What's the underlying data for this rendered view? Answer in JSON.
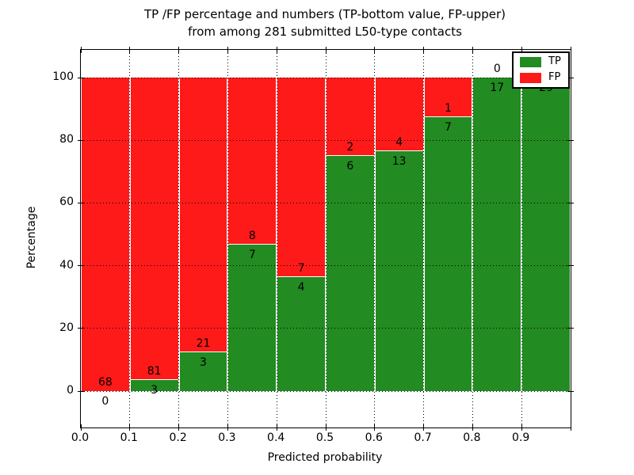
{
  "figure": {
    "title_line1": "TP /FP percentage and numbers (TP-bottom value, FP-upper)",
    "title_line2": "from among 281 submitted L50-type contacts",
    "xlabel": "Predicted probability",
    "ylabel": "Percentage"
  },
  "chart_data": {
    "type": "bar",
    "subtype": "stacked-100-percent",
    "title": "TP /FP percentage and numbers (TP-bottom value, FP-upper) from among 281 submitted L50-type contacts",
    "xlabel": "Predicted probability",
    "ylabel": "Percentage",
    "total_contacts": 281,
    "bin_width": 0.1,
    "bin_starts": [
      0.0,
      0.1,
      0.2,
      0.3,
      0.4,
      0.5,
      0.6,
      0.7,
      0.8,
      0.9
    ],
    "x_tick_labels": [
      "0.0",
      "0.1",
      "0.2",
      "0.3",
      "0.4",
      "0.5",
      "0.6",
      "0.7",
      "0.8",
      "0.9"
    ],
    "y_ticks": [
      0,
      20,
      40,
      60,
      80,
      100
    ],
    "ylim": [
      0,
      100
    ],
    "grid": "dotted",
    "series": [
      {
        "name": "TP",
        "color": "#228B22",
        "values": [
          0,
          3,
          3,
          7,
          4,
          6,
          13,
          7,
          17,
          29
        ]
      },
      {
        "name": "FP",
        "color": "#FF1A1A",
        "values": [
          68,
          81,
          21,
          8,
          7,
          2,
          4,
          1,
          0,
          0
        ]
      }
    ],
    "tp_percent": [
      0.0,
      3.6,
      12.5,
      46.7,
      36.4,
      75.0,
      76.5,
      87.5,
      100.0,
      100.0
    ],
    "legend": {
      "position": "upper right",
      "entries": [
        "TP",
        "FP"
      ]
    }
  }
}
